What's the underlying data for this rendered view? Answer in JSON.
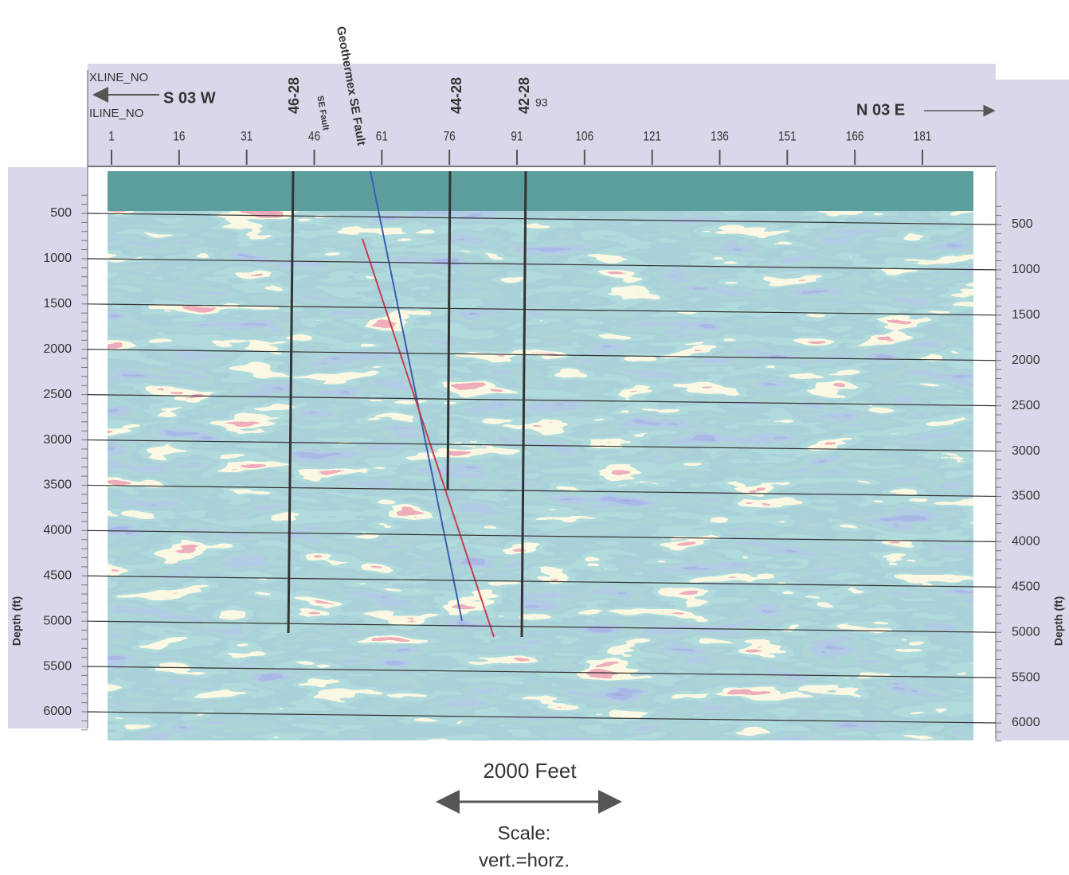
{
  "header": {
    "xline_label": "XLINE_NO",
    "iline_label": "ILINE_NO",
    "left_direction": "S 03 W",
    "right_direction": "N 03 E"
  },
  "trace_axis": {
    "ticks": [
      1,
      16,
      31,
      46,
      61,
      76,
      91,
      106,
      121,
      136,
      151,
      166,
      181
    ]
  },
  "depth_axis": {
    "label": "Depth (ft)",
    "ticks": [
      500,
      1000,
      1500,
      2000,
      2500,
      3000,
      3500,
      4000,
      4500,
      5000,
      5500,
      6000
    ]
  },
  "wells": [
    "46-28",
    "44-28",
    "42-28"
  ],
  "well_note": "93",
  "faults": [
    "SE Fault",
    "Geothermex SE Fault"
  ],
  "scale": {
    "distance": "2000 Feet",
    "title": "Scale:",
    "ratio": "vert.=horz."
  }
}
